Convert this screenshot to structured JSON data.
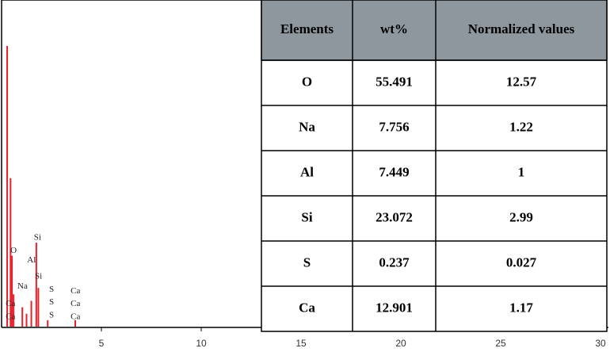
{
  "chart_data": {
    "type": "spectrum",
    "color": "#e8202a",
    "x": [
      0.28,
      0.45,
      0.52,
      0.6,
      1.04,
      1.25,
      1.49,
      1.74,
      1.84,
      2.31,
      3.69
    ],
    "values": [
      87,
      46,
      22,
      10,
      6,
      4,
      8,
      26,
      12,
      2,
      2
    ],
    "xlim": [
      0,
      30
    ],
    "ylim": [
      0,
      100
    ],
    "xticks": [
      5,
      10,
      15,
      20,
      25,
      30
    ],
    "annotations": [
      {
        "text": "O",
        "x": 0.6,
        "y": 22
      },
      {
        "text": "Al",
        "x": 1.5,
        "y": 19
      },
      {
        "text": "Si",
        "x": 1.8,
        "y": 26
      },
      {
        "text": "Na",
        "x": 1.05,
        "y": 11
      },
      {
        "text": "Si",
        "x": 1.85,
        "y": 14
      },
      {
        "text": "S",
        "x": 2.5,
        "y": 10
      },
      {
        "text": "S",
        "x": 2.5,
        "y": 6
      },
      {
        "text": "S",
        "x": 2.5,
        "y": 2
      },
      {
        "text": "Ca",
        "x": 3.7,
        "y": 9.5
      },
      {
        "text": "Ca",
        "x": 3.7,
        "y": 5.5
      },
      {
        "text": "Ca",
        "x": 3.7,
        "y": 1.5
      },
      {
        "text": "Ca",
        "x": 0.45,
        "y": 5.5
      },
      {
        "text": "Ca",
        "x": 0.45,
        "y": 1.5
      }
    ]
  },
  "table": {
    "header": [
      "Elements",
      "wt%",
      "Normalized values"
    ],
    "rows": [
      [
        "O",
        "55.491",
        "12.57"
      ],
      [
        "Na",
        "7.756",
        "1.22"
      ],
      [
        "Al",
        "7.449",
        "1"
      ],
      [
        "Si",
        "23.072",
        "2.99"
      ],
      [
        "S",
        "0.237",
        "0.027"
      ],
      [
        "Ca",
        "12.901",
        "1.17"
      ]
    ]
  }
}
